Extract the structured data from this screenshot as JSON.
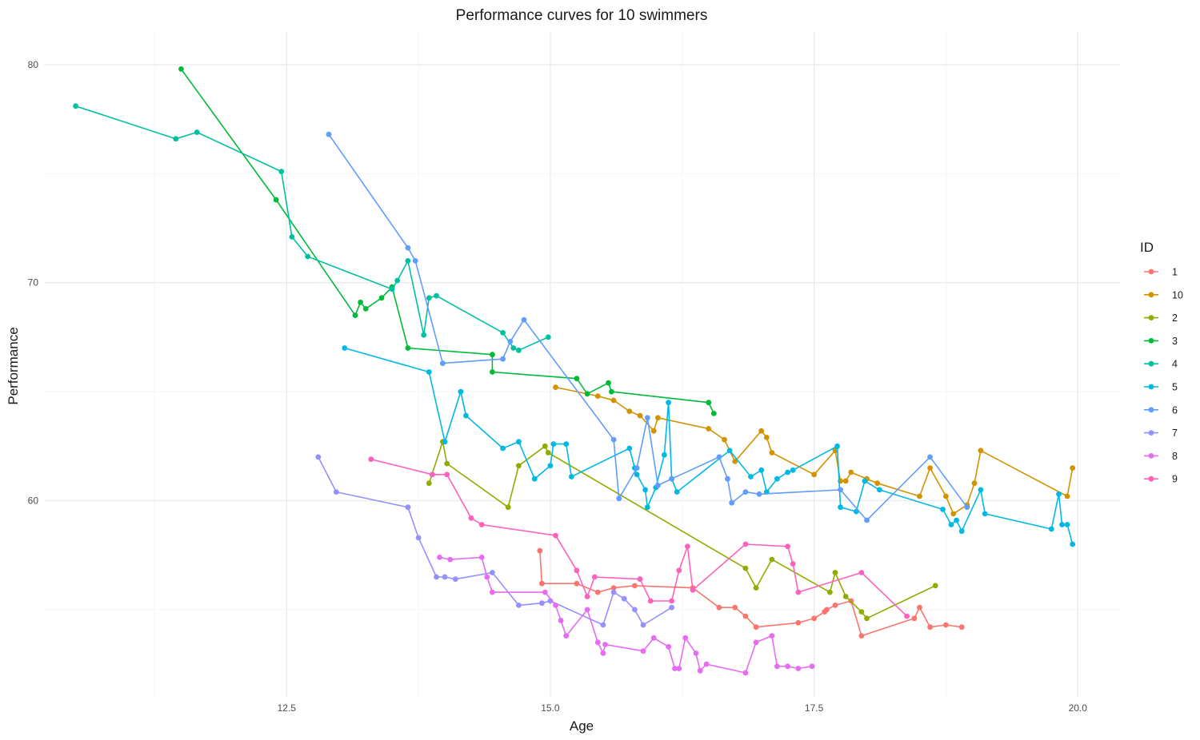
{
  "chart_data": {
    "type": "line",
    "title": "Performance curves for 10 swimmers",
    "xlabel": "Age",
    "ylabel": "Performance",
    "xlim": [
      10.2,
      20.4
    ],
    "ylim": [
      51.0,
      81.5
    ],
    "x_ticks": [
      12.5,
      15.0,
      17.5,
      20.0
    ],
    "x_tick_labels": [
      "12.5",
      "15.0",
      "17.5",
      "20.0"
    ],
    "x_minor_ticks": [
      11.25,
      13.75,
      16.25,
      18.75
    ],
    "y_ticks": [
      60,
      70,
      80
    ],
    "y_tick_labels": [
      "60",
      "70",
      "80"
    ],
    "y_minor_ticks": [
      55,
      65,
      75
    ],
    "grid": true,
    "legend_title": "ID",
    "legend_position": "right",
    "series": [
      {
        "name": "1",
        "color": "#F8766D",
        "points": [
          [
            14.9,
            57.7
          ],
          [
            14.92,
            56.2
          ],
          [
            15.25,
            56.2
          ],
          [
            15.45,
            55.8
          ],
          [
            15.6,
            56.0
          ],
          [
            15.8,
            56.1
          ],
          [
            16.35,
            56.0
          ],
          [
            16.6,
            55.1
          ],
          [
            16.75,
            55.1
          ],
          [
            16.85,
            54.7
          ],
          [
            16.95,
            54.2
          ],
          [
            17.35,
            54.4
          ],
          [
            17.5,
            54.6
          ],
          [
            17.6,
            54.9
          ],
          [
            17.62,
            55.0
          ],
          [
            17.7,
            55.2
          ],
          [
            17.85,
            55.4
          ],
          [
            17.95,
            53.8
          ],
          [
            18.45,
            54.6
          ],
          [
            18.5,
            55.1
          ],
          [
            18.6,
            54.2
          ],
          [
            18.75,
            54.3
          ],
          [
            18.9,
            54.2
          ]
        ]
      },
      {
        "name": "10",
        "color": "#D39200",
        "points": [
          [
            15.05,
            65.2
          ],
          [
            15.45,
            64.8
          ],
          [
            15.6,
            64.6
          ],
          [
            15.75,
            64.1
          ],
          [
            15.85,
            63.9
          ],
          [
            15.98,
            63.2
          ],
          [
            16.02,
            63.8
          ],
          [
            16.5,
            63.3
          ],
          [
            16.65,
            62.8
          ],
          [
            16.75,
            61.8
          ],
          [
            17.0,
            63.2
          ],
          [
            17.05,
            62.9
          ],
          [
            17.1,
            62.2
          ],
          [
            17.5,
            61.2
          ],
          [
            17.7,
            62.3
          ],
          [
            17.75,
            60.9
          ],
          [
            17.8,
            60.9
          ],
          [
            17.85,
            61.3
          ],
          [
            18.0,
            61.0
          ],
          [
            18.1,
            60.8
          ],
          [
            18.5,
            60.2
          ],
          [
            18.6,
            61.5
          ],
          [
            18.75,
            60.2
          ],
          [
            18.82,
            59.4
          ],
          [
            18.95,
            59.8
          ],
          [
            19.02,
            60.8
          ],
          [
            19.08,
            62.3
          ],
          [
            19.9,
            60.2
          ],
          [
            19.95,
            61.5
          ]
        ]
      },
      {
        "name": "2",
        "color": "#93AA00",
        "points": [
          [
            13.85,
            60.8
          ],
          [
            13.98,
            62.7
          ],
          [
            14.02,
            61.7
          ],
          [
            14.6,
            59.7
          ],
          [
            14.7,
            61.6
          ],
          [
            14.95,
            62.5
          ],
          [
            14.98,
            62.2
          ],
          [
            16.85,
            56.9
          ],
          [
            16.95,
            56.0
          ],
          [
            17.1,
            57.3
          ],
          [
            17.65,
            55.8
          ],
          [
            17.7,
            56.7
          ],
          [
            17.8,
            55.6
          ],
          [
            17.95,
            54.9
          ],
          [
            18.0,
            54.6
          ],
          [
            18.65,
            56.1
          ]
        ]
      },
      {
        "name": "3",
        "color": "#00BA38",
        "points": [
          [
            11.5,
            79.8
          ],
          [
            12.4,
            73.8
          ],
          [
            13.15,
            68.5
          ],
          [
            13.2,
            69.1
          ],
          [
            13.25,
            68.8
          ],
          [
            13.4,
            69.3
          ],
          [
            13.5,
            69.8
          ],
          [
            13.65,
            67.0
          ],
          [
            14.45,
            66.7
          ],
          [
            14.45,
            65.9
          ],
          [
            15.25,
            65.6
          ],
          [
            15.35,
            64.9
          ],
          [
            15.55,
            65.4
          ],
          [
            15.58,
            65.0
          ],
          [
            16.5,
            64.5
          ],
          [
            16.55,
            64.0
          ]
        ]
      },
      {
        "name": "4",
        "color": "#00C19F",
        "points": [
          [
            10.5,
            78.1
          ],
          [
            11.45,
            76.6
          ],
          [
            11.65,
            76.9
          ],
          [
            12.45,
            75.1
          ],
          [
            12.55,
            72.1
          ],
          [
            12.7,
            71.2
          ],
          [
            13.5,
            69.7
          ],
          [
            13.55,
            70.1
          ],
          [
            13.65,
            71.0
          ],
          [
            13.8,
            67.6
          ],
          [
            13.85,
            69.3
          ],
          [
            13.92,
            69.4
          ],
          [
            14.55,
            67.7
          ],
          [
            14.65,
            67.0
          ],
          [
            14.7,
            66.9
          ],
          [
            14.98,
            67.5
          ]
        ]
      },
      {
        "name": "5",
        "color": "#00B9E3",
        "points": [
          [
            13.05,
            67.0
          ],
          [
            13.85,
            65.9
          ],
          [
            14.0,
            62.7
          ],
          [
            14.15,
            65.0
          ],
          [
            14.2,
            63.9
          ],
          [
            14.55,
            62.4
          ],
          [
            14.7,
            62.7
          ],
          [
            14.85,
            61.0
          ],
          [
            15.0,
            61.6
          ],
          [
            15.03,
            62.6
          ],
          [
            15.15,
            62.6
          ],
          [
            15.2,
            61.1
          ],
          [
            15.75,
            62.4
          ],
          [
            15.8,
            61.5
          ],
          [
            15.82,
            61.2
          ],
          [
            15.9,
            60.5
          ],
          [
            15.92,
            59.7
          ],
          [
            16.0,
            60.6
          ],
          [
            16.08,
            62.1
          ],
          [
            16.12,
            64.5
          ],
          [
            16.15,
            61.0
          ],
          [
            16.2,
            60.4
          ],
          [
            16.7,
            62.3
          ],
          [
            16.9,
            61.1
          ],
          [
            17.0,
            61.4
          ],
          [
            17.05,
            60.4
          ],
          [
            17.15,
            61.0
          ],
          [
            17.25,
            61.3
          ],
          [
            17.3,
            61.4
          ],
          [
            17.72,
            62.5
          ],
          [
            17.75,
            59.7
          ],
          [
            17.9,
            59.5
          ],
          [
            17.98,
            60.9
          ],
          [
            18.12,
            60.5
          ],
          [
            18.72,
            59.6
          ],
          [
            18.8,
            58.9
          ],
          [
            18.85,
            59.1
          ],
          [
            18.9,
            58.6
          ],
          [
            19.08,
            60.5
          ],
          [
            19.12,
            59.4
          ],
          [
            19.75,
            58.7
          ],
          [
            19.82,
            60.3
          ],
          [
            19.85,
            58.9
          ],
          [
            19.9,
            58.9
          ],
          [
            19.95,
            58.0
          ]
        ]
      },
      {
        "name": "6",
        "color": "#619CFF",
        "points": [
          [
            12.9,
            76.8
          ],
          [
            13.65,
            71.6
          ],
          [
            13.72,
            71.0
          ],
          [
            13.98,
            66.3
          ],
          [
            14.55,
            66.5
          ],
          [
            14.62,
            67.3
          ],
          [
            14.75,
            68.3
          ],
          [
            15.6,
            62.8
          ],
          [
            15.65,
            60.1
          ],
          [
            15.82,
            61.5
          ],
          [
            15.92,
            63.8
          ],
          [
            16.02,
            60.7
          ],
          [
            16.15,
            61.0
          ],
          [
            16.6,
            62.0
          ],
          [
            16.68,
            61.0
          ],
          [
            16.72,
            59.9
          ],
          [
            16.85,
            60.4
          ],
          [
            16.98,
            60.3
          ],
          [
            17.75,
            60.5
          ],
          [
            18.0,
            59.1
          ],
          [
            18.6,
            62.0
          ],
          [
            18.95,
            59.7
          ]
        ]
      },
      {
        "name": "7",
        "color": "#9590FF",
        "points": [
          [
            12.8,
            62.0
          ],
          [
            12.97,
            60.4
          ],
          [
            13.65,
            59.7
          ],
          [
            13.75,
            58.3
          ],
          [
            13.92,
            56.5
          ],
          [
            14.0,
            56.5
          ],
          [
            14.1,
            56.4
          ],
          [
            14.45,
            56.7
          ],
          [
            14.7,
            55.2
          ],
          [
            14.92,
            55.3
          ],
          [
            15.0,
            55.4
          ],
          [
            15.5,
            54.3
          ],
          [
            15.6,
            55.8
          ],
          [
            15.7,
            55.5
          ],
          [
            15.8,
            55.0
          ],
          [
            15.88,
            54.3
          ],
          [
            16.15,
            55.1
          ]
        ]
      },
      {
        "name": "8",
        "color": "#E76BF3",
        "points": [
          [
            13.95,
            57.4
          ],
          [
            14.05,
            57.3
          ],
          [
            14.35,
            57.4
          ],
          [
            14.4,
            56.5
          ],
          [
            14.45,
            55.8
          ],
          [
            14.95,
            55.8
          ],
          [
            15.05,
            55.2
          ],
          [
            15.1,
            54.5
          ],
          [
            15.15,
            53.8
          ],
          [
            15.35,
            55.0
          ],
          [
            15.45,
            53.5
          ],
          [
            15.5,
            53.0
          ],
          [
            15.52,
            53.4
          ],
          [
            15.88,
            53.1
          ],
          [
            15.98,
            53.7
          ],
          [
            16.12,
            53.3
          ],
          [
            16.18,
            52.3
          ],
          [
            16.22,
            52.3
          ],
          [
            16.28,
            53.7
          ],
          [
            16.38,
            53.0
          ],
          [
            16.42,
            52.2
          ],
          [
            16.48,
            52.5
          ],
          [
            16.85,
            52.1
          ],
          [
            16.95,
            53.5
          ],
          [
            17.1,
            53.8
          ],
          [
            17.15,
            52.4
          ],
          [
            17.25,
            52.4
          ],
          [
            17.35,
            52.3
          ],
          [
            17.48,
            52.4
          ]
        ]
      },
      {
        "name": "9",
        "color": "#FF62BC",
        "points": [
          [
            13.3,
            61.9
          ],
          [
            13.88,
            61.2
          ],
          [
            14.02,
            61.2
          ],
          [
            14.25,
            59.2
          ],
          [
            14.35,
            58.9
          ],
          [
            15.05,
            58.4
          ],
          [
            15.25,
            56.8
          ],
          [
            15.35,
            55.6
          ],
          [
            15.42,
            56.5
          ],
          [
            15.85,
            56.4
          ],
          [
            15.95,
            55.4
          ],
          [
            16.15,
            55.4
          ],
          [
            16.22,
            56.8
          ],
          [
            16.3,
            57.9
          ],
          [
            16.35,
            55.9
          ],
          [
            16.85,
            58.0
          ],
          [
            17.25,
            57.9
          ],
          [
            17.3,
            57.1
          ],
          [
            17.35,
            55.8
          ],
          [
            17.95,
            56.7
          ],
          [
            18.38,
            54.7
          ]
        ]
      }
    ]
  }
}
